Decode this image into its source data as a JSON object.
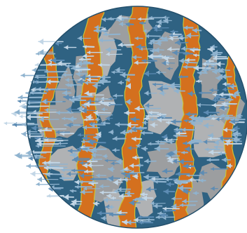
{
  "palette": {
    "background": "#ffffff",
    "fluid": "#2f6282",
    "fluid_dark": "#24506c",
    "band": "#d4701e",
    "band_edge": "#c9c43a",
    "patch": "#9c9ea0",
    "patch_light": "#b0b2b4",
    "arrow": "#8fb3cf",
    "arrow_dark": "#5d8cb4",
    "arrow_light": "#c2d6e6"
  },
  "arrow_direction": "left"
}
